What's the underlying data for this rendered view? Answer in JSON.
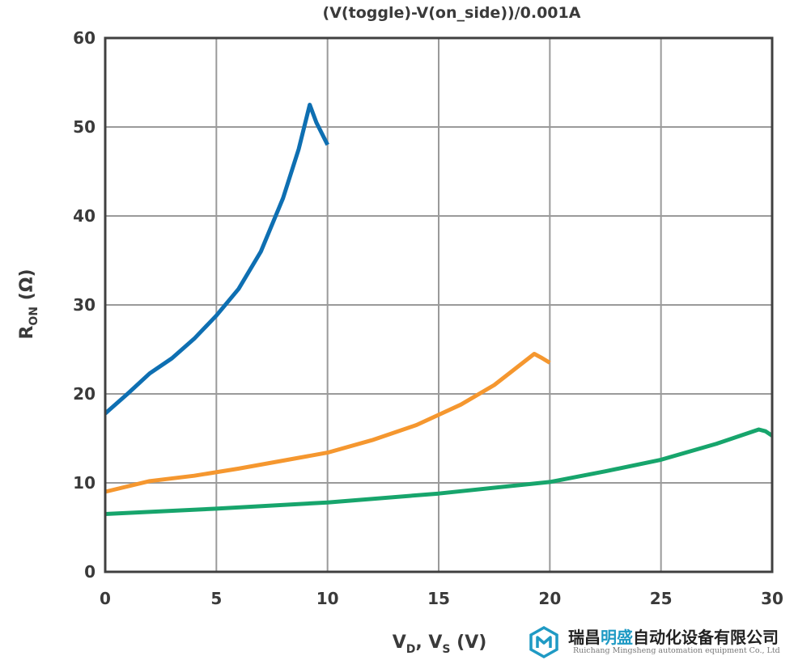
{
  "chart_data": {
    "type": "line",
    "title": "(V(toggle)-V(on_side))/0.001A",
    "xlabel": {
      "main": "V",
      "sub1": "D",
      "mid": ", V",
      "sub2": "S",
      "unit": " (V)"
    },
    "ylabel": {
      "main": "R",
      "sub": "ON",
      "unit": " (Ω)"
    },
    "xlim": [
      0,
      30
    ],
    "ylim": [
      0,
      60
    ],
    "xticks": [
      "0",
      "5",
      "10",
      "15",
      "20",
      "25",
      "30"
    ],
    "yticks": [
      "0",
      "10",
      "20",
      "30",
      "40",
      "50",
      "60"
    ],
    "grid": true,
    "series": [
      {
        "color": "#0e6fb2",
        "points": [
          [
            0,
            17.8
          ],
          [
            1,
            20
          ],
          [
            2,
            22.3
          ],
          [
            3,
            24
          ],
          [
            4,
            26.2
          ],
          [
            5,
            28.8
          ],
          [
            6,
            31.8
          ],
          [
            7,
            36
          ],
          [
            8,
            42
          ],
          [
            8.7,
            47.5
          ],
          [
            9.2,
            52.5
          ],
          [
            9.5,
            50.5
          ],
          [
            10,
            48
          ]
        ]
      },
      {
        "color": "#f5972f",
        "points": [
          [
            0,
            9
          ],
          [
            2,
            10.2
          ],
          [
            4,
            10.8
          ],
          [
            6,
            11.6
          ],
          [
            8,
            12.5
          ],
          [
            10,
            13.4
          ],
          [
            12,
            14.8
          ],
          [
            14,
            16.5
          ],
          [
            16,
            18.8
          ],
          [
            17.5,
            21
          ],
          [
            19.3,
            24.5
          ],
          [
            19.6,
            24.1
          ],
          [
            20,
            23.5
          ]
        ]
      },
      {
        "color": "#17a56c",
        "points": [
          [
            0,
            6.5
          ],
          [
            5,
            7.1
          ],
          [
            10,
            7.8
          ],
          [
            15,
            8.8
          ],
          [
            20,
            10.1
          ],
          [
            22.5,
            11.3
          ],
          [
            25,
            12.6
          ],
          [
            27.5,
            14.4
          ],
          [
            29.4,
            16
          ],
          [
            29.7,
            15.8
          ],
          [
            30,
            15.3
          ]
        ]
      }
    ]
  },
  "watermark": {
    "cn_prefix": "瑞昌",
    "cn_highlight": "明盛",
    "cn_suffix": "自动化设备有限公司",
    "en": "Ruichang Mingsheng automation equipment Co., Ltd",
    "logo_color": "#1f9ac4"
  }
}
